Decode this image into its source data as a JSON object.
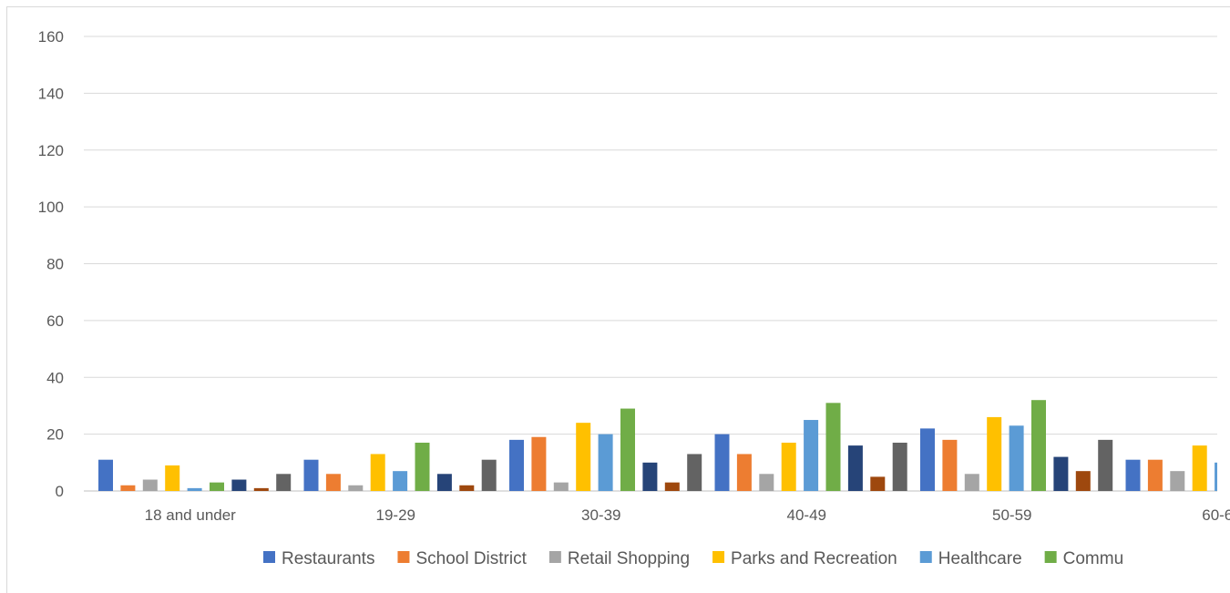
{
  "chart_data": {
    "type": "bar",
    "title": "",
    "xlabel": "",
    "ylabel": "",
    "ylim": [
      0,
      160
    ],
    "yticks": [
      0,
      20,
      40,
      60,
      80,
      100,
      120,
      140,
      160
    ],
    "grid": true,
    "legend_position": "bottom",
    "categories": [
      "18 and under",
      "19-29",
      "30-39",
      "40-49",
      "50-59",
      "60-6"
    ],
    "series": [
      {
        "name": "Restaurants",
        "color": "#4472C4",
        "values": [
          11,
          11,
          18,
          20,
          22,
          11
        ]
      },
      {
        "name": "School District",
        "color": "#ED7D31",
        "values": [
          2,
          6,
          19,
          13,
          18,
          11
        ]
      },
      {
        "name": "Retail Shopping",
        "color": "#A5A5A5",
        "values": [
          4,
          2,
          3,
          6,
          6,
          7
        ]
      },
      {
        "name": "Parks and Recreation",
        "color": "#FFC000",
        "values": [
          9,
          13,
          24,
          17,
          26,
          16
        ]
      },
      {
        "name": "Healthcare",
        "color": "#5B9BD5",
        "values": [
          1,
          7,
          20,
          25,
          23,
          10
        ]
      },
      {
        "name": "Commu",
        "color": "#70AD47",
        "values": [
          3,
          17,
          29,
          31,
          32,
          null
        ]
      },
      {
        "name": "",
        "color": "#264478",
        "values": [
          4,
          6,
          10,
          16,
          12,
          null
        ]
      },
      {
        "name": "",
        "color": "#9E480E",
        "values": [
          1,
          2,
          3,
          5,
          7,
          null
        ]
      },
      {
        "name": "",
        "color": "#636363",
        "values": [
          6,
          11,
          13,
          17,
          18,
          null
        ]
      }
    ]
  }
}
